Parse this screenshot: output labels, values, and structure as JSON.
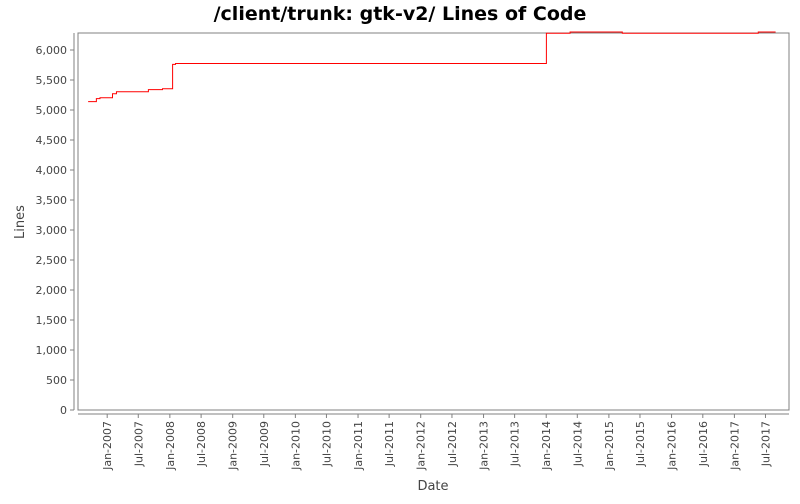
{
  "chart_data": {
    "type": "line",
    "title": "/client/trunk: gtk-v2/ Lines of Code",
    "xlabel": "Date",
    "ylabel": "Lines",
    "ylim": [
      0,
      6250
    ],
    "xlim": [
      "2006-07-15",
      "2017-11-15"
    ],
    "grid": false,
    "step": true,
    "line_color": "#ff0000",
    "yticks": [
      0,
      500,
      1000,
      1500,
      2000,
      2500,
      3000,
      3500,
      4000,
      4500,
      5000,
      5500,
      6000
    ],
    "ytick_labels": [
      "0",
      "500",
      "1,000",
      "1,500",
      "2,000",
      "2,500",
      "3,000",
      "3,500",
      "4,000",
      "4,500",
      "5,000",
      "5,500",
      "6,000"
    ],
    "xticks": [
      "2007-01-01",
      "2007-07-01",
      "2008-01-01",
      "2008-07-01",
      "2009-01-01",
      "2009-07-01",
      "2010-01-01",
      "2010-07-01",
      "2011-01-01",
      "2011-07-01",
      "2012-01-01",
      "2012-07-01",
      "2013-01-01",
      "2013-07-01",
      "2014-01-01",
      "2014-07-01",
      "2015-01-01",
      "2015-07-01",
      "2016-01-01",
      "2016-07-01",
      "2017-01-01",
      "2017-07-01"
    ],
    "xtick_labels": [
      "Jan-2007",
      "Jul-2007",
      "Jan-2008",
      "Jul-2008",
      "Jan-2009",
      "Jul-2009",
      "Jan-2010",
      "Jul-2010",
      "Jan-2011",
      "Jul-2011",
      "Jan-2012",
      "Jul-2012",
      "Jan-2013",
      "Jul-2013",
      "Jan-2014",
      "Jul-2014",
      "Jan-2015",
      "Jul-2015",
      "Jan-2016",
      "Jul-2016",
      "Jan-2017",
      "Jul-2017"
    ],
    "series": [
      {
        "x": [
          "2006-09-12",
          "2006-10-30",
          "2006-11-20",
          "2007-02-01",
          "2007-02-24",
          "2007-08-29",
          "2007-11-19",
          "2008-01-17",
          "2008-02-03",
          "2014-01-02",
          "2014-05-20",
          "2015-03-20",
          "2017-05-20",
          "2017-08-29"
        ],
        "y": [
          5140,
          5190,
          5205,
          5270,
          5305,
          5340,
          5355,
          5760,
          5775,
          6280,
          6300,
          6280,
          6300,
          6300
        ]
      }
    ]
  }
}
